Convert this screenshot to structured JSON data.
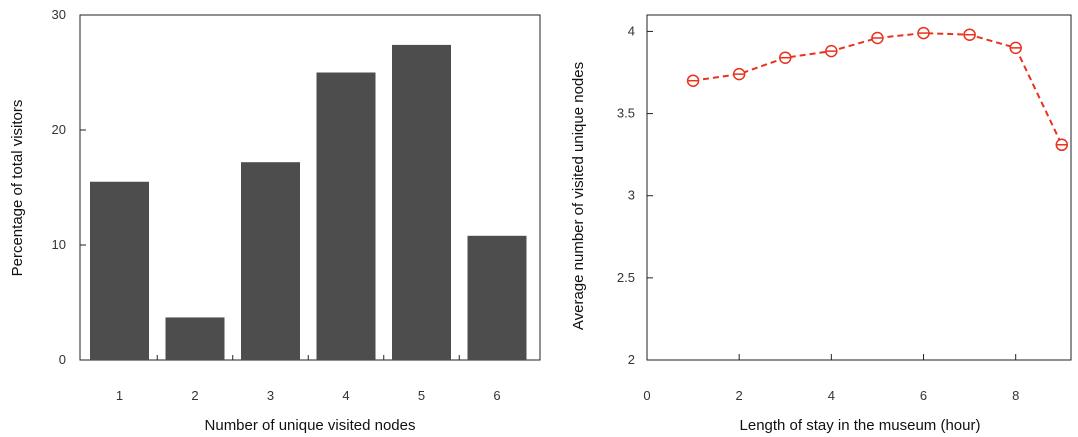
{
  "chart_data": [
    {
      "type": "bar",
      "title": "",
      "xlabel": "Number of unique visited nodes",
      "ylabel": "Percentage of total visitors",
      "categories": [
        "1",
        "2",
        "3",
        "4",
        "5",
        "6"
      ],
      "values": [
        15.5,
        3.7,
        17.2,
        25.0,
        27.4,
        10.8
      ],
      "ylim": [
        0,
        30
      ],
      "yticks": [
        "0",
        "10",
        "20",
        "30"
      ],
      "bar_color": "#4d4d4d",
      "grid": false
    },
    {
      "type": "line",
      "title": "",
      "xlabel": "Length of stay in the museum (hour)",
      "ylabel": "Average number of visited unique nodes",
      "x": [
        1,
        2,
        3,
        4,
        5,
        6,
        7,
        8,
        9
      ],
      "y": [
        3.7,
        3.74,
        3.84,
        3.88,
        3.96,
        3.99,
        3.98,
        3.9,
        3.31
      ],
      "xlim": [
        0,
        9.2
      ],
      "ylim": [
        2,
        4.1
      ],
      "xticks": [
        "0",
        "2",
        "4",
        "6",
        "8"
      ],
      "yticks": [
        "2",
        "2.5",
        "3",
        "3.5",
        "4"
      ],
      "line_color": "#e8321e",
      "line_style": "dashed",
      "marker": "open-circle-with-bar",
      "grid": false
    }
  ]
}
